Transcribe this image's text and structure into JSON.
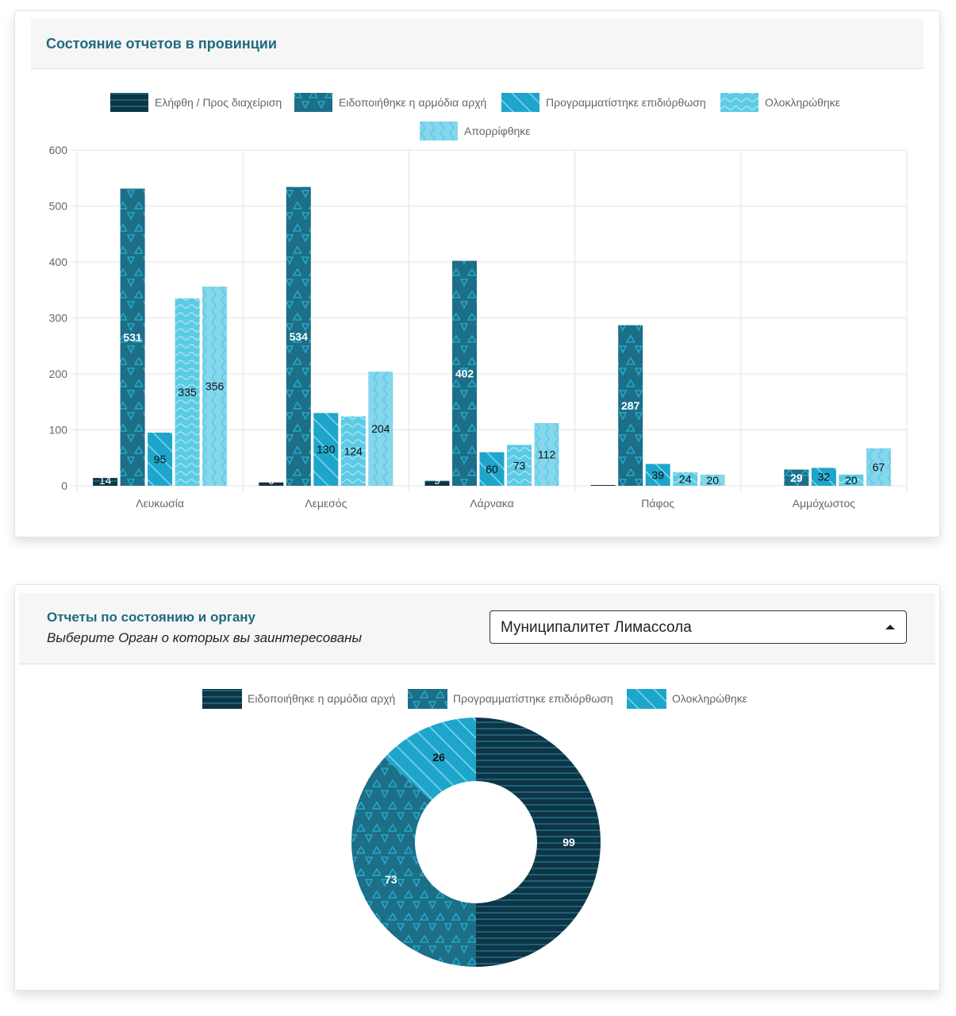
{
  "card1": {
    "title": "Состояние отчетов в провинции"
  },
  "card2": {
    "title": "Отчеты по состоянию и органу",
    "subtitle": "Выберите Орган о которых вы заинтересованы",
    "select": {
      "value": "Муниципалитет Лимассола",
      "icon": "caret-up-icon"
    }
  },
  "colors": {
    "c1": "#0f3545",
    "c2": "#1d6e87",
    "c3": "#1ea5cb",
    "c4": "#5ccbe6",
    "c5": "#86d6ec",
    "title": "#1f6b80"
  },
  "chart_data": [
    {
      "type": "bar",
      "title": "Состояние отчетов в провинции",
      "xlabel": "",
      "ylabel": "",
      "ylim": [
        0,
        600
      ],
      "yticks": [
        0,
        100,
        200,
        300,
        400,
        500,
        600
      ],
      "grid": true,
      "legend": "top",
      "categories": [
        "Λευκωσία",
        "Λεμεσός",
        "Λάρνακα",
        "Πάφος",
        "Αμμόχωστος"
      ],
      "series": [
        {
          "name": "Ελήφθη / Προς διαχείριση",
          "pattern": "horizontal-lines",
          "values": [
            14,
            6,
            9,
            1,
            0
          ]
        },
        {
          "name": "Ειδοποιήθηκε η αρμόδια αρχή",
          "pattern": "triangles",
          "values": [
            531,
            534,
            402,
            287,
            29
          ]
        },
        {
          "name": "Προγραμματίστηκε επιδιόρθωση",
          "pattern": "diagonal-lines",
          "values": [
            95,
            130,
            60,
            39,
            32
          ]
        },
        {
          "name": "Ολοκληρώθηκε",
          "pattern": "waves",
          "values": [
            335,
            124,
            73,
            24,
            20
          ]
        },
        {
          "name": "Απορρίφθηκε",
          "pattern": "zigzag",
          "values": [
            356,
            204,
            112,
            20,
            67
          ]
        }
      ]
    },
    {
      "type": "pie",
      "variant": "doughnut",
      "title": "Отчеты по состоянию и органу",
      "legend": "top",
      "categories": [
        "Ειδοποιήθηκε η αρμόδια αρχή",
        "Προγραμματίστηκε επιδιόρθωση",
        "Ολοκληρώθηκε"
      ],
      "values": [
        99,
        73,
        26
      ]
    }
  ]
}
